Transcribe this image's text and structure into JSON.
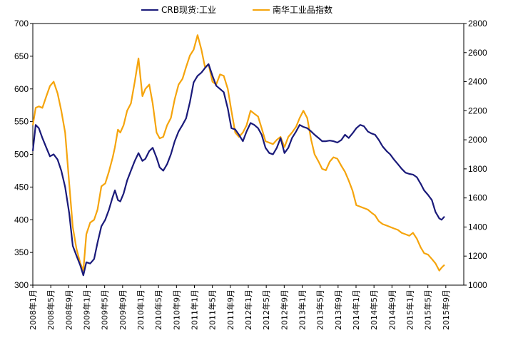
{
  "chart_data": {
    "type": "line",
    "legend": {
      "placement": "top"
    },
    "grid": false,
    "left_axis": {
      "range": [
        300,
        700
      ],
      "ticks": [
        "300",
        "350",
        "400",
        "450",
        "500",
        "550",
        "600",
        "650",
        "700"
      ]
    },
    "right_axis": {
      "range": [
        1000,
        2800
      ],
      "ticks": [
        "1000",
        "1200",
        "1400",
        "1600",
        "1800",
        "2000",
        "2200",
        "2400",
        "2600",
        "2800"
      ]
    },
    "x_axis": {
      "range": [
        "2008-01",
        "2015-12"
      ],
      "ticks": [
        "2008年1月",
        "2008年5月",
        "2008年9月",
        "2009年1月",
        "2009年5月",
        "2009年9月",
        "2010年1月",
        "2010年5月",
        "2010年9月",
        "2011年1月",
        "2011年5月",
        "2011年9月",
        "2012年1月",
        "2012年5月",
        "2012年9月",
        "2013年1月",
        "2013年5月",
        "2013年9月",
        "2014年1月",
        "2014年5月",
        "2014年9月",
        "2015年1月",
        "2015年5月",
        "2015年9月"
      ]
    },
    "series": [
      {
        "name": "CRB现货:工业",
        "axis": "left",
        "color": "#1a1a7a",
        "points": [
          [
            "2008-01-01",
            505
          ],
          [
            "2008-01-20",
            545
          ],
          [
            "2008-02-10",
            540
          ],
          [
            "2008-03-05",
            525
          ],
          [
            "2008-04-01",
            510
          ],
          [
            "2008-04-25",
            497
          ],
          [
            "2008-05-20",
            500
          ],
          [
            "2008-06-15",
            492
          ],
          [
            "2008-07-10",
            475
          ],
          [
            "2008-08-05",
            450
          ],
          [
            "2008-09-01",
            410
          ],
          [
            "2008-09-25",
            360
          ],
          [
            "2008-10-20",
            345
          ],
          [
            "2008-11-15",
            330
          ],
          [
            "2008-12-05",
            315
          ],
          [
            "2008-12-25",
            335
          ],
          [
            "2009-01-20",
            333
          ],
          [
            "2009-02-15",
            340
          ],
          [
            "2009-03-10",
            365
          ],
          [
            "2009-04-05",
            390
          ],
          [
            "2009-05-01",
            400
          ],
          [
            "2009-05-25",
            415
          ],
          [
            "2009-06-20",
            435
          ],
          [
            "2009-07-05",
            445
          ],
          [
            "2009-07-25",
            430
          ],
          [
            "2009-08-10",
            428
          ],
          [
            "2009-09-01",
            440
          ],
          [
            "2009-09-25",
            460
          ],
          [
            "2009-10-20",
            475
          ],
          [
            "2009-11-15",
            490
          ],
          [
            "2009-12-10",
            502
          ],
          [
            "2010-01-05",
            490
          ],
          [
            "2010-01-25",
            493
          ],
          [
            "2010-02-20",
            505
          ],
          [
            "2010-03-15",
            510
          ],
          [
            "2010-04-10",
            495
          ],
          [
            "2010-05-01",
            480
          ],
          [
            "2010-05-25",
            475
          ],
          [
            "2010-06-20",
            485
          ],
          [
            "2010-07-15",
            500
          ],
          [
            "2010-08-10",
            520
          ],
          [
            "2010-09-05",
            535
          ],
          [
            "2010-10-01",
            545
          ],
          [
            "2010-10-25",
            555
          ],
          [
            "2010-11-20",
            580
          ],
          [
            "2010-12-15",
            610
          ],
          [
            "2011-01-10",
            620
          ],
          [
            "2011-02-05",
            625
          ],
          [
            "2011-03-01",
            632
          ],
          [
            "2011-03-25",
            638
          ],
          [
            "2011-04-20",
            620
          ],
          [
            "2011-05-15",
            605
          ],
          [
            "2011-06-10",
            600
          ],
          [
            "2011-07-05",
            595
          ],
          [
            "2011-08-01",
            570
          ],
          [
            "2011-08-25",
            540
          ],
          [
            "2011-09-20",
            538
          ],
          [
            "2011-10-15",
            530
          ],
          [
            "2011-11-10",
            520
          ],
          [
            "2011-12-05",
            535
          ],
          [
            "2012-01-01",
            548
          ],
          [
            "2012-01-25",
            545
          ],
          [
            "2012-02-20",
            540
          ],
          [
            "2012-03-15",
            530
          ],
          [
            "2012-04-10",
            510
          ],
          [
            "2012-05-05",
            502
          ],
          [
            "2012-05-30",
            500
          ],
          [
            "2012-06-25",
            510
          ],
          [
            "2012-07-20",
            525
          ],
          [
            "2012-08-15",
            502
          ],
          [
            "2012-09-10",
            510
          ],
          [
            "2012-10-05",
            525
          ],
          [
            "2012-11-01",
            535
          ],
          [
            "2012-11-25",
            545
          ],
          [
            "2012-12-20",
            542
          ],
          [
            "2013-01-15",
            540
          ],
          [
            "2013-02-10",
            535
          ],
          [
            "2013-03-05",
            530
          ],
          [
            "2013-04-01",
            525
          ],
          [
            "2013-04-25",
            520
          ],
          [
            "2013-05-20",
            520
          ],
          [
            "2013-06-15",
            521
          ],
          [
            "2013-07-10",
            520
          ],
          [
            "2013-08-05",
            518
          ],
          [
            "2013-09-01",
            522
          ],
          [
            "2013-09-25",
            530
          ],
          [
            "2013-10-20",
            525
          ],
          [
            "2013-11-15",
            532
          ],
          [
            "2013-12-10",
            540
          ],
          [
            "2014-01-05",
            545
          ],
          [
            "2014-01-30",
            543
          ],
          [
            "2014-02-25",
            535
          ],
          [
            "2014-03-20",
            532
          ],
          [
            "2014-04-15",
            530
          ],
          [
            "2014-05-10",
            522
          ],
          [
            "2014-06-05",
            512
          ],
          [
            "2014-07-01",
            505
          ],
          [
            "2014-07-25",
            500
          ],
          [
            "2014-08-20",
            492
          ],
          [
            "2014-09-15",
            485
          ],
          [
            "2014-10-10",
            478
          ],
          [
            "2014-11-05",
            472
          ],
          [
            "2014-12-01",
            470
          ],
          [
            "2014-12-25",
            469
          ],
          [
            "2015-01-20",
            465
          ],
          [
            "2015-02-15",
            455
          ],
          [
            "2015-03-10",
            445
          ],
          [
            "2015-04-05",
            438
          ],
          [
            "2015-05-01",
            430
          ],
          [
            "2015-05-25",
            412
          ],
          [
            "2015-06-20",
            402
          ],
          [
            "2015-07-05",
            400
          ],
          [
            "2015-07-25",
            405
          ]
        ]
      },
      {
        "name": "南华工业品指数",
        "axis": "right",
        "color": "#f5a40c",
        "points": [
          [
            "2008-01-01",
            2100
          ],
          [
            "2008-01-20",
            2220
          ],
          [
            "2008-02-10",
            2230
          ],
          [
            "2008-03-05",
            2220
          ],
          [
            "2008-04-01",
            2300
          ],
          [
            "2008-04-25",
            2370
          ],
          [
            "2008-05-20",
            2400
          ],
          [
            "2008-06-15",
            2320
          ],
          [
            "2008-07-10",
            2200
          ],
          [
            "2008-08-05",
            2050
          ],
          [
            "2008-09-01",
            1700
          ],
          [
            "2008-09-25",
            1400
          ],
          [
            "2008-10-20",
            1250
          ],
          [
            "2008-11-15",
            1150
          ],
          [
            "2008-12-05",
            1100
          ],
          [
            "2008-12-25",
            1350
          ],
          [
            "2009-01-20",
            1430
          ],
          [
            "2009-02-15",
            1450
          ],
          [
            "2009-03-10",
            1520
          ],
          [
            "2009-04-05",
            1680
          ],
          [
            "2009-05-01",
            1700
          ],
          [
            "2009-05-25",
            1780
          ],
          [
            "2009-06-20",
            1880
          ],
          [
            "2009-07-05",
            1950
          ],
          [
            "2009-07-25",
            2070
          ],
          [
            "2009-08-10",
            2050
          ],
          [
            "2009-09-01",
            2100
          ],
          [
            "2009-09-25",
            2200
          ],
          [
            "2009-10-20",
            2250
          ],
          [
            "2009-11-15",
            2400
          ],
          [
            "2009-12-10",
            2560
          ],
          [
            "2010-01-05",
            2300
          ],
          [
            "2010-01-25",
            2350
          ],
          [
            "2010-02-20",
            2380
          ],
          [
            "2010-03-15",
            2250
          ],
          [
            "2010-04-10",
            2050
          ],
          [
            "2010-05-01",
            2010
          ],
          [
            "2010-05-25",
            2020
          ],
          [
            "2010-06-20",
            2100
          ],
          [
            "2010-07-15",
            2150
          ],
          [
            "2010-08-10",
            2280
          ],
          [
            "2010-09-05",
            2380
          ],
          [
            "2010-10-01",
            2420
          ],
          [
            "2010-10-25",
            2500
          ],
          [
            "2010-11-20",
            2580
          ],
          [
            "2010-12-15",
            2620
          ],
          [
            "2011-01-10",
            2720
          ],
          [
            "2011-02-05",
            2620
          ],
          [
            "2011-03-01",
            2500
          ],
          [
            "2011-03-25",
            2520
          ],
          [
            "2011-04-20",
            2400
          ],
          [
            "2011-05-15",
            2380
          ],
          [
            "2011-06-10",
            2450
          ],
          [
            "2011-07-05",
            2440
          ],
          [
            "2011-08-01",
            2350
          ],
          [
            "2011-08-25",
            2200
          ],
          [
            "2011-09-20",
            2050
          ],
          [
            "2011-10-15",
            2020
          ],
          [
            "2011-11-10",
            2050
          ],
          [
            "2011-12-05",
            2100
          ],
          [
            "2012-01-01",
            2200
          ],
          [
            "2012-01-25",
            2180
          ],
          [
            "2012-02-20",
            2160
          ],
          [
            "2012-03-15",
            2080
          ],
          [
            "2012-04-10",
            1990
          ],
          [
            "2012-05-05",
            1980
          ],
          [
            "2012-05-30",
            1970
          ],
          [
            "2012-06-25",
            2000
          ],
          [
            "2012-07-20",
            2020
          ],
          [
            "2012-08-15",
            1950
          ],
          [
            "2012-09-10",
            2020
          ],
          [
            "2012-10-05",
            2050
          ],
          [
            "2012-11-01",
            2090
          ],
          [
            "2012-11-25",
            2150
          ],
          [
            "2012-12-20",
            2200
          ],
          [
            "2013-01-15",
            2150
          ],
          [
            "2013-02-10",
            2000
          ],
          [
            "2013-03-05",
            1900
          ],
          [
            "2013-04-01",
            1850
          ],
          [
            "2013-04-25",
            1800
          ],
          [
            "2013-05-20",
            1790
          ],
          [
            "2013-06-15",
            1850
          ],
          [
            "2013-07-10",
            1880
          ],
          [
            "2013-08-05",
            1870
          ],
          [
            "2013-09-01",
            1820
          ],
          [
            "2013-09-25",
            1780
          ],
          [
            "2013-10-20",
            1720
          ],
          [
            "2013-11-15",
            1650
          ],
          [
            "2013-12-10",
            1550
          ],
          [
            "2014-01-05",
            1540
          ],
          [
            "2014-01-30",
            1530
          ],
          [
            "2014-02-25",
            1520
          ],
          [
            "2014-03-20",
            1500
          ],
          [
            "2014-04-15",
            1480
          ],
          [
            "2014-05-10",
            1440
          ],
          [
            "2014-06-05",
            1420
          ],
          [
            "2014-07-01",
            1410
          ],
          [
            "2014-07-25",
            1400
          ],
          [
            "2014-08-20",
            1390
          ],
          [
            "2014-09-15",
            1380
          ],
          [
            "2014-10-10",
            1360
          ],
          [
            "2014-11-05",
            1350
          ],
          [
            "2014-12-01",
            1340
          ],
          [
            "2014-12-25",
            1360
          ],
          [
            "2015-01-20",
            1320
          ],
          [
            "2015-02-15",
            1260
          ],
          [
            "2015-03-10",
            1220
          ],
          [
            "2015-04-05",
            1210
          ],
          [
            "2015-05-01",
            1180
          ],
          [
            "2015-05-25",
            1150
          ],
          [
            "2015-06-20",
            1100
          ],
          [
            "2015-07-05",
            1120
          ],
          [
            "2015-07-25",
            1140
          ]
        ]
      }
    ]
  }
}
